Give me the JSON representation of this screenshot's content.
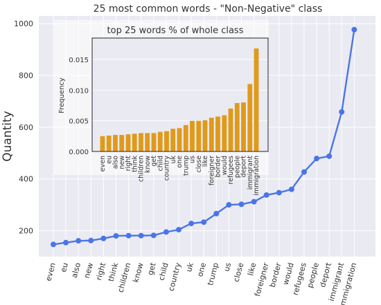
{
  "chart_data": [
    {
      "type": "line",
      "title": "25 most common words - \"Non-Negative\" class",
      "xlabel": "",
      "ylabel": "Quantity",
      "ylim": [
        100,
        1030
      ],
      "yticks": [
        200,
        400,
        600,
        800,
        1000
      ],
      "grid": true,
      "legend": "none",
      "colors": {
        "line": "#4a74e8",
        "marker": "#4a74e8",
        "background": "#eaeaf2",
        "grid": "#ffffff"
      },
      "categories": [
        "even",
        "eu",
        "also",
        "new",
        "right",
        "think",
        "children",
        "know",
        "get",
        "child",
        "country",
        "uk",
        "one",
        "trump",
        "us",
        "close",
        "like",
        "foreigner",
        "border",
        "would",
        "refugees",
        "people",
        "deport",
        "immigrant",
        "immigration"
      ],
      "values": [
        147,
        154,
        161,
        162,
        170,
        180,
        181,
        181,
        182,
        195,
        204,
        228,
        233,
        266,
        300,
        302,
        312,
        338,
        347,
        360,
        427,
        479,
        488,
        659,
        977
      ]
    },
    {
      "type": "bar",
      "title": "top 25 words % of whole class",
      "xlabel": "",
      "ylabel": "Frequency",
      "ylim": [
        0,
        0.0185
      ],
      "yticks": [
        "0.000",
        "0.005",
        "0.010",
        "0.015"
      ],
      "grid": true,
      "legend": "none",
      "colors": {
        "bar": "#e09a1a",
        "background": "#eaeaf2",
        "grid": "#ffffff"
      },
      "categories": [
        "even",
        "eu",
        "also",
        "new",
        "right",
        "think",
        "children",
        "know",
        "get",
        "child",
        "country",
        "uk",
        "one",
        "trump",
        "us",
        "close",
        "like",
        "foreigner",
        "border",
        "would",
        "refugees",
        "people",
        "deport",
        "immigrant",
        "immigration"
      ],
      "values": [
        0.0025,
        0.0026,
        0.0027,
        0.0027,
        0.0028,
        0.0029,
        0.003,
        0.003,
        0.003,
        0.0032,
        0.0033,
        0.0037,
        0.0038,
        0.0043,
        0.005,
        0.005,
        0.0051,
        0.0055,
        0.0057,
        0.0059,
        0.007,
        0.0079,
        0.008,
        0.011,
        0.0168
      ]
    }
  ]
}
